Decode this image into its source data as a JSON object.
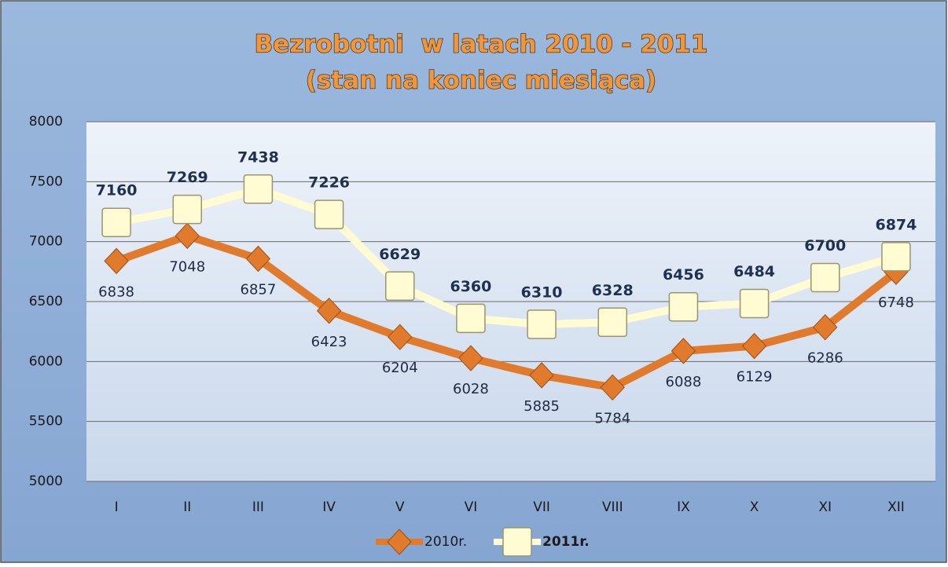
{
  "chart_data": {
    "type": "line",
    "title": "Bezrobotni  w latach 2010 - 2011",
    "subtitle": "(stan na koniec miesiąca)",
    "categories": [
      "I",
      "II",
      "III",
      "IV",
      "V",
      "VI",
      "VII",
      "VIII",
      "IX",
      "X",
      "XI",
      "XII"
    ],
    "series": [
      {
        "name": "2010r.",
        "color": "#e07a2c",
        "marker": "diamond",
        "values": [
          6838,
          7048,
          6857,
          6423,
          6204,
          6028,
          5885,
          5784,
          6088,
          6129,
          6286,
          6748
        ]
      },
      {
        "name": "2011r.",
        "color": "#fffbd2",
        "marker": "square",
        "values": [
          7160,
          7269,
          7438,
          7226,
          6629,
          6360,
          6310,
          6328,
          6456,
          6484,
          6700,
          6874
        ]
      }
    ],
    "ylim": [
      5000,
      8000
    ],
    "yticks": [
      5000,
      5500,
      6000,
      6500,
      7000,
      7500,
      8000
    ],
    "grid": true,
    "legend": "bottom"
  }
}
